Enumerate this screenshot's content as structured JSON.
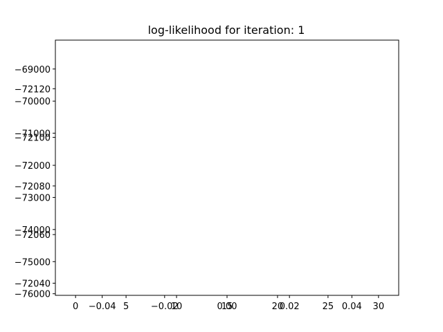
{
  "figure": {
    "background_color": "#ffffff",
    "axes_edge_color": "#000000",
    "text_color": "#000000"
  },
  "chart_data": {
    "type": "line",
    "title": "log-likelihood for iteration: 1",
    "xlabel": "",
    "ylabel": "",
    "grid": false,
    "legend": "none",
    "series": [],
    "axes": [
      {
        "name": "axis-a",
        "xlim": [
          -2,
          32
        ],
        "ylim": [
          -76050,
          -68100
        ],
        "y_inverted": false,
        "xticks": [
          {
            "value": 0,
            "label": "0"
          },
          {
            "value": 5,
            "label": "5"
          },
          {
            "value": 10,
            "label": "10"
          },
          {
            "value": 15,
            "label": "15"
          },
          {
            "value": 20,
            "label": "20"
          },
          {
            "value": 25,
            "label": "25"
          },
          {
            "value": 30,
            "label": "30"
          }
        ],
        "yticks": [
          {
            "value": -69000,
            "label": "−69000"
          },
          {
            "value": -70000,
            "label": "−70000"
          },
          {
            "value": -71000,
            "label": "−71000"
          },
          {
            "value": -72000,
            "label": "−72000"
          },
          {
            "value": -73000,
            "label": "−73000"
          },
          {
            "value": -74000,
            "label": "−74000"
          },
          {
            "value": -75000,
            "label": "−75000"
          },
          {
            "value": -76000,
            "label": "−76000"
          }
        ]
      },
      {
        "name": "axis-b",
        "xlim": [
          -0.055,
          0.055
        ],
        "ylim": [
          -72035,
          -72140
        ],
        "y_inverted": true,
        "xticks": [
          {
            "value": -0.04,
            "label": "−0.04"
          },
          {
            "value": -0.02,
            "label": "−0.02"
          },
          {
            "value": 0.0,
            "label": "0.00"
          },
          {
            "value": 0.02,
            "label": "0.02"
          },
          {
            "value": 0.04,
            "label": "0.04"
          }
        ],
        "yticks": [
          {
            "value": -72040,
            "label": "−72040"
          },
          {
            "value": -72060,
            "label": "−72060"
          },
          {
            "value": -72080,
            "label": "−72080"
          },
          {
            "value": -72100,
            "label": "−72100"
          },
          {
            "value": -72120,
            "label": "−72120"
          }
        ]
      }
    ]
  }
}
